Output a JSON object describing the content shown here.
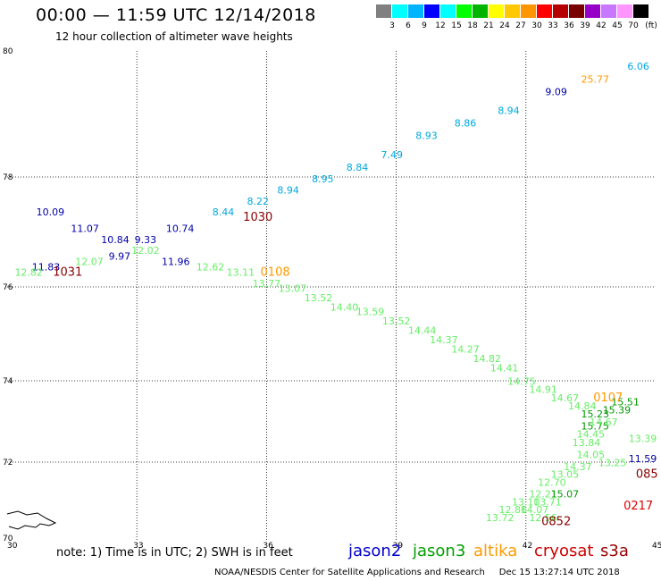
{
  "header": {
    "title": "00:00 — 11:59 UTC 12/14/2018",
    "subtitle": "12 hour collection of altimeter wave heights"
  },
  "legend": {
    "colors": [
      "#808080",
      "#00ffff",
      "#00b4ff",
      "#0000ff",
      "#00ffff",
      "#00ff00",
      "#00b400",
      "#ffff00",
      "#ffc800",
      "#ff9600",
      "#ff0000",
      "#b40000",
      "#780000",
      "#9600c8",
      "#c878ff",
      "#ff96ff",
      "#000000"
    ],
    "labels": [
      "3",
      "6",
      "9",
      "12",
      "15",
      "18",
      "21",
      "24",
      "27",
      "30",
      "33",
      "36",
      "39",
      "42",
      "45",
      "70"
    ],
    "unit": "(ft)"
  },
  "map": {
    "lon_ticks": [
      "30",
      "33",
      "36",
      "39",
      "42",
      "45"
    ],
    "lat_ticks": [
      "70",
      "72",
      "74",
      "76",
      "78",
      "80"
    ]
  },
  "footer": {
    "note": "note: 1) Time is in UTC; 2) SWH is in feet",
    "credit": "NOAA/NESDIS Center for Satellite Applications and Research     Dec 15 13:27:14 UTC 2018",
    "satellites": [
      {
        "name": "jason2",
        "color": "#0000cc"
      },
      {
        "name": "jason3",
        "color": "#00a000"
      },
      {
        "name": "altika",
        "color": "#ff9900"
      },
      {
        "name": "cryosat",
        "color": "#cc0000"
      },
      {
        "name": "s3a",
        "color": "#990000"
      }
    ]
  },
  "colors": {
    "jason2": "#0000aa",
    "cyan": "#00a8e0",
    "light_green": "#66ee66",
    "green": "#009900",
    "orange": "#ff9900",
    "dark_red": "#880000",
    "red": "#dd0000"
  },
  "points": [
    {
      "t": "10.09",
      "lon": 31.0,
      "lat": 77.3,
      "c": "jason2"
    },
    {
      "t": "11.07",
      "lon": 31.8,
      "lat": 77.0,
      "c": "jason2"
    },
    {
      "t": "10.84",
      "lon": 32.5,
      "lat": 76.8,
      "c": "jason2"
    },
    {
      "t": "9.97",
      "lon": 32.6,
      "lat": 76.5,
      "c": "jason2"
    },
    {
      "t": "9.33",
      "lon": 33.2,
      "lat": 76.8,
      "c": "jason2"
    },
    {
      "t": "10.74",
      "lon": 34.0,
      "lat": 77.0,
      "c": "jason2"
    },
    {
      "t": "11.96",
      "lon": 33.9,
      "lat": 76.4,
      "c": "jason2"
    },
    {
      "t": "11.83",
      "lon": 30.9,
      "lat": 76.3,
      "c": "jason2"
    },
    {
      "t": "12.82",
      "lon": 30.5,
      "lat": 76.2,
      "c": "light_green"
    },
    {
      "t": "12.07",
      "lon": 31.9,
      "lat": 76.4,
      "c": "light_green"
    },
    {
      "t": "12.02",
      "lon": 33.2,
      "lat": 76.6,
      "c": "light_green"
    },
    {
      "t": "12.62",
      "lon": 34.7,
      "lat": 76.3,
      "c": "light_green"
    },
    {
      "t": "13.11",
      "lon": 35.4,
      "lat": 76.2,
      "c": "light_green"
    },
    {
      "t": "13.77",
      "lon": 36.0,
      "lat": 76.0,
      "c": "light_green"
    },
    {
      "t": "13.07",
      "lon": 36.6,
      "lat": 75.9,
      "c": "light_green"
    },
    {
      "t": "13.52",
      "lon": 37.2,
      "lat": 75.7,
      "c": "light_green"
    },
    {
      "t": "14.40",
      "lon": 37.8,
      "lat": 75.5,
      "c": "light_green"
    },
    {
      "t": "13.59",
      "lon": 38.4,
      "lat": 75.4,
      "c": "light_green"
    },
    {
      "t": "13.52",
      "lon": 39.0,
      "lat": 75.2,
      "c": "light_green"
    },
    {
      "t": "14.44",
      "lon": 39.6,
      "lat": 75.0,
      "c": "light_green"
    },
    {
      "t": "14.37",
      "lon": 40.1,
      "lat": 74.8,
      "c": "light_green"
    },
    {
      "t": "14.27",
      "lon": 40.6,
      "lat": 74.6,
      "c": "light_green"
    },
    {
      "t": "14.82",
      "lon": 41.1,
      "lat": 74.4,
      "c": "light_green"
    },
    {
      "t": "14.41",
      "lon": 41.5,
      "lat": 74.2,
      "c": "light_green"
    },
    {
      "t": "14.75",
      "lon": 41.9,
      "lat": 73.9,
      "c": "light_green"
    },
    {
      "t": "14.91",
      "lon": 42.4,
      "lat": 73.7,
      "c": "light_green"
    },
    {
      "t": "14.67",
      "lon": 42.9,
      "lat": 73.5,
      "c": "light_green"
    },
    {
      "t": "14.84",
      "lon": 43.3,
      "lat": 73.3,
      "c": "light_green"
    },
    {
      "t": "15.23",
      "lon": 43.6,
      "lat": 73.1,
      "c": "green"
    },
    {
      "t": "14.45",
      "lon": 43.5,
      "lat": 72.6,
      "c": "light_green"
    },
    {
      "t": "13.84",
      "lon": 43.4,
      "lat": 72.4,
      "c": "light_green"
    },
    {
      "t": "15.75",
      "lon": 43.6,
      "lat": 72.8,
      "c": "green"
    },
    {
      "t": "15.39",
      "lon": 44.1,
      "lat": 73.2,
      "c": "green"
    },
    {
      "t": "15.51",
      "lon": 44.3,
      "lat": 73.4,
      "c": "green"
    },
    {
      "t": "14.67",
      "lon": 43.8,
      "lat": 72.9,
      "c": "light_green"
    },
    {
      "t": "14.05",
      "lon": 43.5,
      "lat": 72.1,
      "c": "light_green"
    },
    {
      "t": "13.25",
      "lon": 44.0,
      "lat": 71.9,
      "c": "light_green"
    },
    {
      "t": "14.37",
      "lon": 43.2,
      "lat": 71.8,
      "c": "light_green"
    },
    {
      "t": "13.05",
      "lon": 42.9,
      "lat": 71.6,
      "c": "light_green"
    },
    {
      "t": "12.70",
      "lon": 42.6,
      "lat": 71.4,
      "c": "light_green"
    },
    {
      "t": "12.21",
      "lon": 42.4,
      "lat": 71.1,
      "c": "light_green"
    },
    {
      "t": "15.07",
      "lon": 42.9,
      "lat": 71.1,
      "c": "green"
    },
    {
      "t": "13.10",
      "lon": 42.0,
      "lat": 70.9,
      "c": "light_green"
    },
    {
      "t": "13.71",
      "lon": 42.5,
      "lat": 70.9,
      "c": "light_green"
    },
    {
      "t": "12.86",
      "lon": 41.7,
      "lat": 70.7,
      "c": "light_green"
    },
    {
      "t": "14.07",
      "lon": 42.2,
      "lat": 70.7,
      "c": "light_green"
    },
    {
      "t": "13.72",
      "lon": 41.4,
      "lat": 70.5,
      "c": "light_green"
    },
    {
      "t": "12.56",
      "lon": 42.4,
      "lat": 70.5,
      "c": "light_green"
    },
    {
      "t": "13.39",
      "lon": 44.7,
      "lat": 72.5,
      "c": "light_green"
    },
    {
      "t": "8.22",
      "lon": 35.8,
      "lat": 77.5,
      "c": "cyan"
    },
    {
      "t": "8.44",
      "lon": 35.0,
      "lat": 77.3,
      "c": "cyan"
    },
    {
      "t": "8.94",
      "lon": 36.5,
      "lat": 77.7,
      "c": "cyan"
    },
    {
      "t": "8.95",
      "lon": 37.3,
      "lat": 77.9,
      "c": "cyan"
    },
    {
      "t": "8.84",
      "lon": 38.1,
      "lat": 78.1,
      "c": "cyan"
    },
    {
      "t": "7.49",
      "lon": 38.9,
      "lat": 78.3,
      "c": "cyan"
    },
    {
      "t": "8.93",
      "lon": 39.7,
      "lat": 78.6,
      "c": "cyan"
    },
    {
      "t": "8.86",
      "lon": 40.6,
      "lat": 78.8,
      "c": "cyan"
    },
    {
      "t": "8.94",
      "lon": 41.6,
      "lat": 79.0,
      "c": "cyan"
    },
    {
      "t": "9.09",
      "lon": 42.7,
      "lat": 79.3,
      "c": "jason2"
    },
    {
      "t": "25.77",
      "lon": 43.6,
      "lat": 79.5,
      "c": "orange"
    },
    {
      "t": "6.06",
      "lon": 44.6,
      "lat": 79.7,
      "c": "cyan"
    },
    {
      "t": "11.59",
      "lon": 44.7,
      "lat": 72.0,
      "c": "jason2"
    },
    {
      "t": "1030",
      "lon": 35.8,
      "lat": 77.2,
      "c": "dark_red",
      "big": true
    },
    {
      "t": "1031",
      "lon": 31.4,
      "lat": 76.2,
      "c": "dark_red",
      "big": true
    },
    {
      "t": "0108",
      "lon": 36.2,
      "lat": 76.2,
      "c": "orange",
      "big": true
    },
    {
      "t": "0107",
      "lon": 43.9,
      "lat": 73.5,
      "c": "orange",
      "big": true
    },
    {
      "t": "0852",
      "lon": 42.7,
      "lat": 70.4,
      "c": "dark_red",
      "big": true
    },
    {
      "t": "0217",
      "lon": 44.6,
      "lat": 70.8,
      "c": "red",
      "big": true
    },
    {
      "t": "085",
      "lon": 44.8,
      "lat": 71.6,
      "c": "dark_red",
      "big": true
    }
  ]
}
